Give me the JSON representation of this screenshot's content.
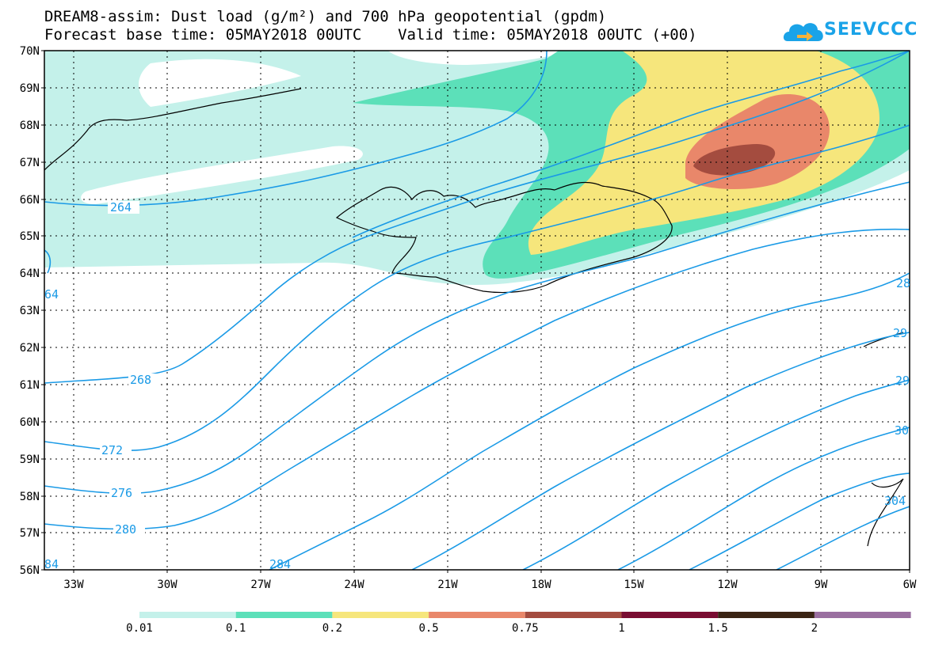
{
  "header": {
    "title_line1": "DREAM8-assim: Dust load (g/m²) and 700 hPa geopotential (gpdm)",
    "title_line2": "Forecast base time: 05MAY2018 00UTC    Valid time: 05MAY2018 00UTC (+00)"
  },
  "logo": {
    "text": "SEEVCCC",
    "icon": "cloud-arrow-icon",
    "color": "#1aa3e8"
  },
  "map": {
    "lat_labels": [
      "70N",
      "69N",
      "68N",
      "67N",
      "66N",
      "65N",
      "64N",
      "63N",
      "62N",
      "61N",
      "60N",
      "59N",
      "58N",
      "57N",
      "56N"
    ],
    "lon_labels": [
      "33W",
      "30W",
      "27W",
      "24W",
      "21W",
      "18W",
      "15W",
      "12W",
      "9W",
      "6W"
    ],
    "contour_labels": [
      "264",
      "268",
      "272",
      "276",
      "280",
      "284",
      "64",
      "28",
      "29",
      "29",
      "30",
      "304",
      "84"
    ]
  },
  "colorbar": {
    "labels": [
      "0.01",
      "0.1",
      "0.2",
      "0.5",
      "0.75",
      "1",
      "1.5",
      "2"
    ],
    "colors": [
      "#c4f1ea",
      "#5ce0b9",
      "#f6e67c",
      "#e9876a",
      "#a44c3f",
      "#7a0d32",
      "#3a2414",
      "#9a6fa0"
    ]
  }
}
